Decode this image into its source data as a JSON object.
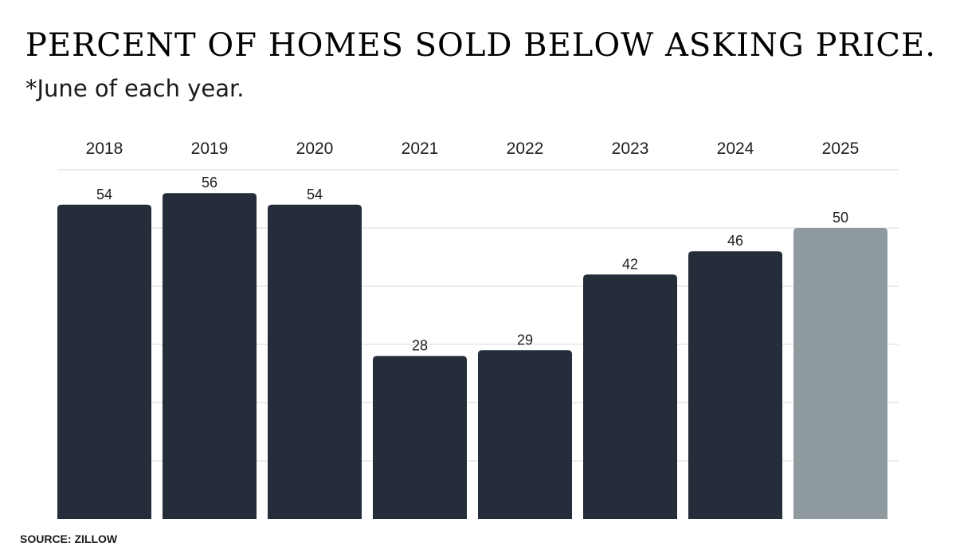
{
  "title": "PERCENT OF HOMES SOLD BELOW ASKING PRICE.",
  "subtitle": "*June of each year.",
  "source": "SOURCE: ZILLOW",
  "colors": {
    "bar": "#242d39",
    "highlight": "#8f9a9f",
    "grid": "#d9d9d9"
  },
  "chart_data": {
    "type": "bar",
    "categories": [
      "2018",
      "2019",
      "2020",
      "2021",
      "2022",
      "2023",
      "2024",
      "2025"
    ],
    "values": [
      54,
      56,
      54,
      28,
      29,
      42,
      46,
      50
    ],
    "highlight_index": 7,
    "ylim": [
      0,
      60
    ],
    "grid": true,
    "category_labels_position": "top",
    "data_labels": true
  }
}
